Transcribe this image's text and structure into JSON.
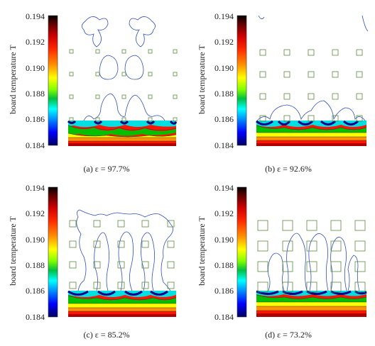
{
  "colorbar": {
    "label": "board temperature T",
    "ticks": [
      "0.194",
      "0.192",
      "0.190",
      "0.188",
      "0.186",
      "0.184"
    ],
    "range": [
      0.184,
      0.194
    ],
    "colors": [
      "#000000",
      "#4a0000",
      "#a00000",
      "#ff0000",
      "#ff7a00",
      "#ffff00",
      "#7fff00",
      "#00c000",
      "#00ffff",
      "#0060ff",
      "#0000ff",
      "#000060"
    ]
  },
  "panels": [
    {
      "id": "a",
      "caption": "(a) ε = 97.7%"
    },
    {
      "id": "b",
      "caption": "(b) ε = 92.6%"
    },
    {
      "id": "c",
      "caption": "(c) ε = 85.2%"
    },
    {
      "id": "d",
      "caption": "(d) ε = 73.2%"
    }
  ]
}
